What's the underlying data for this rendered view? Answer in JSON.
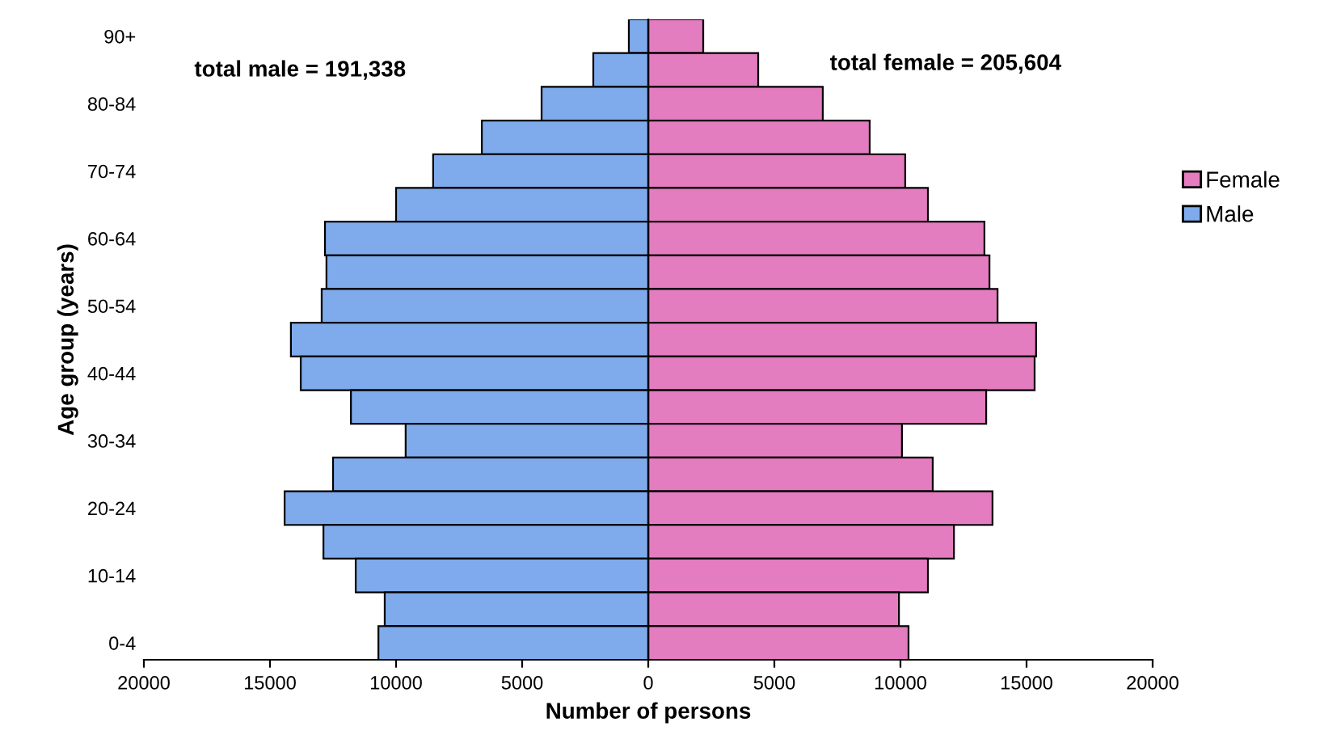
{
  "chart_data": {
    "type": "bar",
    "orientation": "horizontal",
    "stacked": true,
    "xlabel": "Number of persons",
    "ylabel": "Age group (years)",
    "categories": [
      "90+",
      null,
      "80-84",
      null,
      "70-74",
      null,
      "60-64",
      null,
      "50-54",
      null,
      "40-44",
      null,
      "30-34",
      null,
      "20-24",
      null,
      "10-14",
      null,
      "0-4"
    ],
    "series": [
      {
        "name": "Female",
        "color": "#e47cc0",
        "values": [
          2180,
          4360,
          6920,
          8780,
          10190,
          11090,
          13330,
          13530,
          13850,
          15380,
          15320,
          13400,
          10060,
          11280,
          13650,
          12120,
          11090,
          9940,
          10320
        ]
      },
      {
        "name": "Male",
        "color": "#7fabec",
        "values": [
          -770,
          -2180,
          -4230,
          -6600,
          -8530,
          -10000,
          -12820,
          -12760,
          -12950,
          -14170,
          -13780,
          -11790,
          -9620,
          -12500,
          -14420,
          -12880,
          -11600,
          -10450,
          -10700
        ]
      }
    ],
    "xlim": [
      -20000,
      20000
    ],
    "xticks": [
      {
        "value": -20000,
        "label": "20000"
      },
      {
        "value": -15000,
        "label": "15000"
      },
      {
        "value": -10000,
        "label": "10000"
      },
      {
        "value": -5000,
        "label": "5000"
      },
      0,
      5000,
      10000,
      15000,
      20000
    ],
    "annotations": [
      "total male = 191,338",
      "total female = 205,604"
    ],
    "legend": "right"
  }
}
